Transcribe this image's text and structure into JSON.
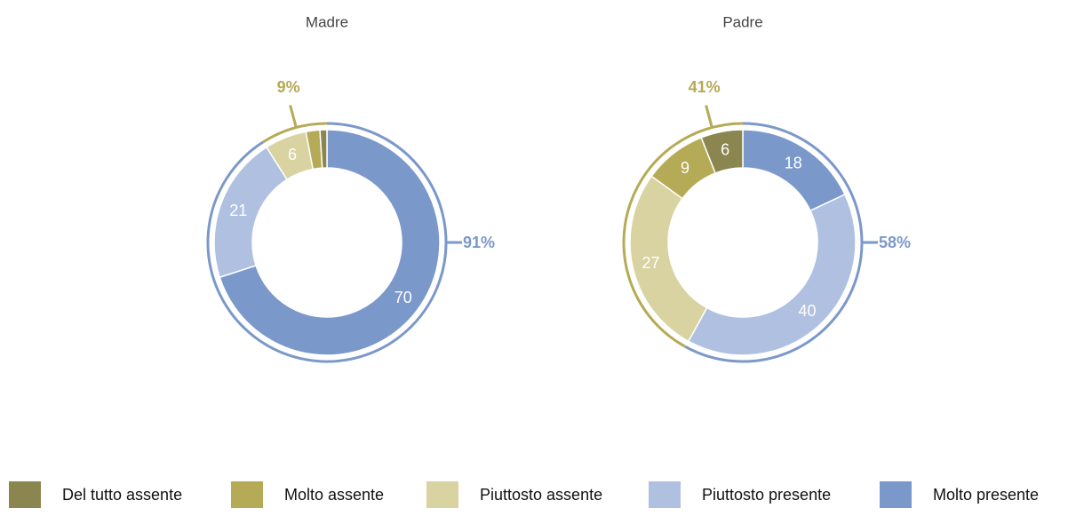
{
  "chart_data": [
    {
      "type": "donut",
      "title": "Madre",
      "categories": [
        "Del tutto assente",
        "Molto assente",
        "Piuttosto assente",
        "Piuttosto presente",
        "Molto presente"
      ],
      "values": [
        1,
        2,
        6,
        21,
        70
      ],
      "value_labels": [
        null,
        null,
        "6",
        "21",
        "70"
      ],
      "colors": [
        "#8b8650",
        "#b5aa55",
        "#d9d2a1",
        "#b0c0e1",
        "#7b98ca"
      ],
      "totals": [
        9,
        91
      ],
      "total_labels": [
        "9%",
        "91%"
      ],
      "total_colors": [
        "#b5aa55",
        "#7b98ca"
      ]
    },
    {
      "type": "donut",
      "title": "Padre",
      "categories": [
        "Del tutto assente",
        "Molto assente",
        "Piuttosto assente",
        "Piuttosto presente",
        "Molto presente"
      ],
      "values": [
        6,
        9,
        27,
        40,
        18
      ],
      "value_labels": [
        "6",
        "9",
        "27",
        "40",
        "18"
      ],
      "colors": [
        "#8b8650",
        "#b5aa55",
        "#d9d2a1",
        "#b0c0e1",
        "#7b98ca"
      ],
      "totals": [
        41,
        58
      ],
      "total_labels": [
        "41%",
        "58%"
      ],
      "total_colors": [
        "#b5aa55",
        "#7b98ca"
      ]
    }
  ]
}
